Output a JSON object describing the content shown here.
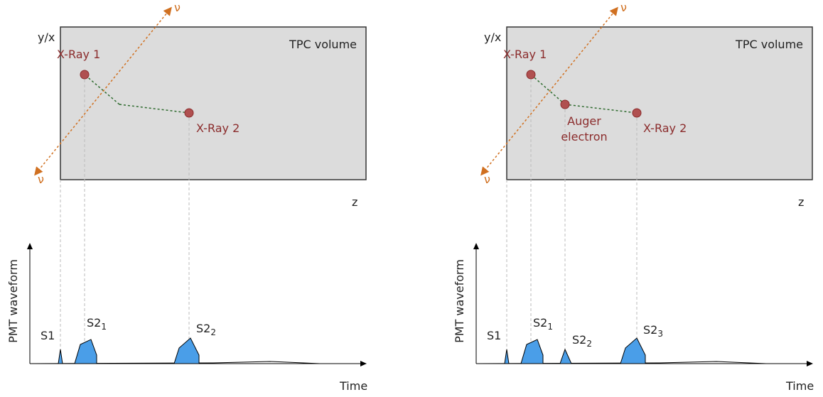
{
  "panels": [
    {
      "axis_label": "y/x",
      "volume_label": "TPC volume",
      "xray_labels": [
        "X-Ray 1",
        "X-Ray 2"
      ],
      "neutrino_labels": [
        "ν",
        "ν"
      ],
      "z_label": "z",
      "waveform_label": "PMT waveform",
      "time_label": "Time",
      "peaks": [
        {
          "label": "S1"
        },
        {
          "label": "S2",
          "subscript": "1"
        },
        {
          "label": "S2",
          "subscript": "2"
        }
      ]
    },
    {
      "axis_label": "y/x",
      "volume_label": "TPC volume",
      "xray_labels": [
        "X-Ray 1",
        "X-Ray 2"
      ],
      "auger_label": [
        "Auger",
        "electron"
      ],
      "neutrino_labels": [
        "ν",
        "ν"
      ],
      "z_label": "z",
      "waveform_label": "PMT waveform",
      "time_label": "Time",
      "peaks": [
        {
          "label": "S1"
        },
        {
          "label": "S2",
          "subscript": "1"
        },
        {
          "label": "S2",
          "subscript": "2"
        },
        {
          "label": "S2",
          "subscript": "3"
        }
      ]
    }
  ]
}
